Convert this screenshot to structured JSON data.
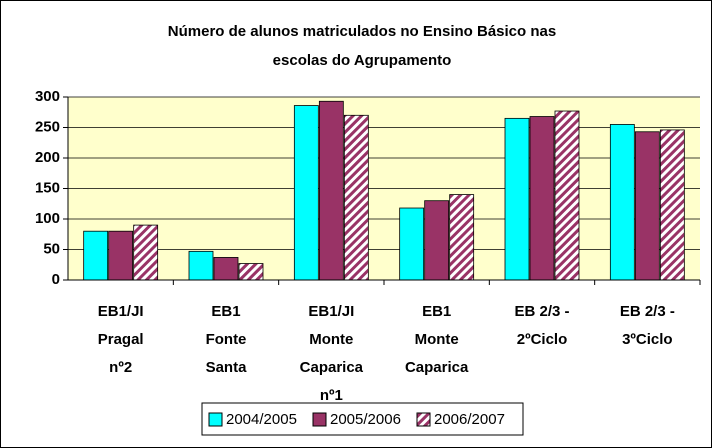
{
  "chart_data": {
    "type": "bar",
    "title": [
      "Número de alunos matriculados no Ensino Básico nas",
      "escolas do Agrupamento"
    ],
    "categories": [
      [
        "EB1/JI",
        "Pragal",
        "nº2"
      ],
      [
        "EB1",
        "Fonte",
        "Santa"
      ],
      [
        "EB1/JI",
        "Monte",
        "Caparica",
        "nº1"
      ],
      [
        "EB1",
        "Monte",
        "Caparica"
      ],
      [
        "EB 2/3 -",
        "2ºCiclo"
      ],
      [
        "EB 2/3 -",
        "3ºCiclo"
      ]
    ],
    "series": [
      {
        "name": "2004/2005",
        "color": "#00ffff",
        "values": [
          80,
          47,
          286,
          118,
          265,
          255
        ]
      },
      {
        "name": "2005/2006",
        "color": "#993366",
        "values": [
          80,
          37,
          293,
          130,
          268,
          243
        ]
      },
      {
        "name": "2006/2007",
        "color": "#993366",
        "pattern": "hatch",
        "values": [
          90,
          27,
          270,
          140,
          277,
          246
        ]
      }
    ],
    "ylim": [
      0,
      300
    ],
    "yticks": [
      0,
      50,
      100,
      150,
      200,
      250,
      300
    ],
    "grid": true,
    "legend": "bottom"
  }
}
